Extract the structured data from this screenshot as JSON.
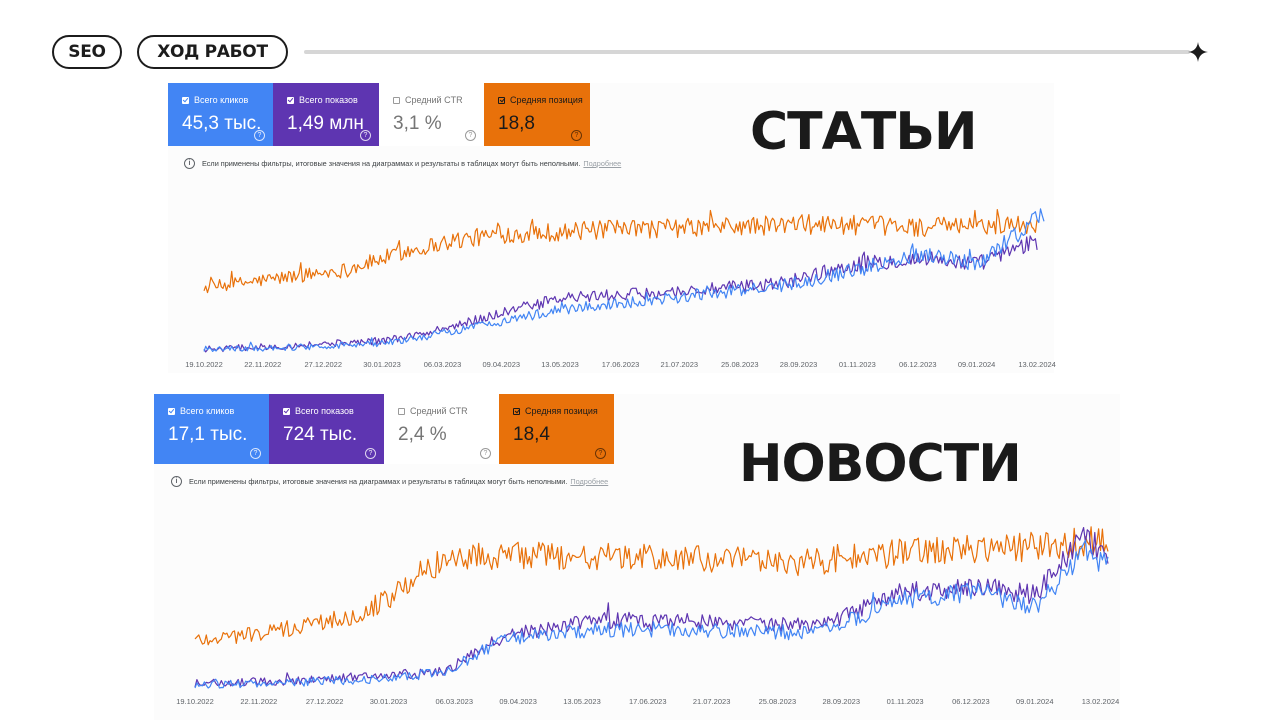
{
  "header": {
    "tag": "SEO",
    "section": "ХОД РАБОТ",
    "star_icon": "sparkle-icon"
  },
  "colors": {
    "clicks": "#4285f4",
    "impressions": "#5e35b1",
    "position": "#e8710a",
    "text": "#1a1a1a"
  },
  "panels": [
    {
      "title": "СТАТЬИ",
      "metrics": [
        {
          "label": "Всего кликов",
          "value": "45,3 тыс.",
          "checked": true
        },
        {
          "label": "Всего показов",
          "value": "1,49 млн",
          "checked": true
        },
        {
          "label": "Средний CTR",
          "value": "3,1 %",
          "checked": false
        },
        {
          "label": "Средняя позиция",
          "value": "18,8",
          "checked": true
        }
      ],
      "note": "Если применены фильтры, итоговые значения на диаграммах и результаты в таблицах могут быть неполными.",
      "more": "Подробнее"
    },
    {
      "title": "НОВОСТИ",
      "metrics": [
        {
          "label": "Всего кликов",
          "value": "17,1 тыс.",
          "checked": true
        },
        {
          "label": "Всего показов",
          "value": "724 тыс.",
          "checked": true
        },
        {
          "label": "Средний CTR",
          "value": "2,4 %",
          "checked": false
        },
        {
          "label": "Средняя позиция",
          "value": "18,4",
          "checked": true
        }
      ],
      "note": "Если применены фильтры, итоговые значения на диаграммах и результаты в таблицах могут быть неполными.",
      "more": "Подробнее"
    }
  ],
  "chart_data": [
    {
      "type": "line",
      "title": "",
      "x_range": [
        "19.10.2022",
        "17.02.2024"
      ],
      "x_ticks": [
        "19.10.2022",
        "22.11.2022",
        "27.12.2022",
        "30.01.2023",
        "06.03.2023",
        "09.04.2023",
        "13.05.2023",
        "17.06.2023",
        "21.07.2023",
        "25.08.2023",
        "28.09.2023",
        "01.11.2023",
        "06.12.2023",
        "09.01.2024",
        "13.02.2024"
      ],
      "y_axis": "none (relative scales per series)",
      "grid": false,
      "series": [
        {
          "name": "Средняя позиция",
          "color": "#e8710a",
          "x": [
            "19.10.2022",
            "01.12.2022",
            "10.01.2023",
            "10.02.2023",
            "10.03.2023",
            "10.04.2023",
            "10.06.2023",
            "10.08.2023",
            "10.10.2023",
            "10.12.2023",
            "13.02.2024"
          ],
          "level": [
            0.45,
            0.52,
            0.58,
            0.7,
            0.78,
            0.83,
            0.86,
            0.88,
            0.9,
            0.88,
            0.9
          ],
          "noise": 0.06
        },
        {
          "name": "Всего показов",
          "color": "#5e35b1",
          "x": [
            "19.10.2022",
            "01.12.2022",
            "30.01.2023",
            "01.03.2023",
            "10.04.2023",
            "15.05.2023",
            "15.07.2023",
            "15.09.2023",
            "01.11.2023",
            "10.12.2023",
            "09.01.2024",
            "13.02.2024"
          ],
          "level": [
            0.02,
            0.04,
            0.08,
            0.14,
            0.28,
            0.38,
            0.42,
            0.48,
            0.62,
            0.66,
            0.62,
            0.78
          ],
          "noise": 0.06
        },
        {
          "name": "Всего кликов",
          "color": "#4285f4",
          "x": [
            "19.10.2022",
            "01.12.2022",
            "30.01.2023",
            "01.03.2023",
            "10.04.2023",
            "15.05.2023",
            "15.07.2023",
            "15.09.2023",
            "01.11.2023",
            "10.12.2023",
            "09.01.2024",
            "17.02.2024"
          ],
          "level": [
            0.02,
            0.03,
            0.06,
            0.12,
            0.22,
            0.3,
            0.38,
            0.46,
            0.58,
            0.7,
            0.62,
            0.98
          ],
          "noise": 0.06
        }
      ]
    },
    {
      "type": "line",
      "title": "",
      "x_range": [
        "19.10.2022",
        "17.02.2024"
      ],
      "x_ticks": [
        "19.10.2022",
        "22.11.2022",
        "27.12.2022",
        "30.01.2023",
        "06.03.2023",
        "09.04.2023",
        "13.05.2023",
        "17.06.2023",
        "21.07.2023",
        "25.08.2023",
        "28.09.2023",
        "01.11.2023",
        "06.12.2023",
        "09.01.2024",
        "13.02.2024"
      ],
      "y_axis": "none (relative scales per series)",
      "grid": false,
      "series": [
        {
          "name": "Средняя позиция",
          "color": "#e8710a",
          "x": [
            "19.10.2022",
            "01.12.2022",
            "10.01.2023",
            "30.01.2023",
            "20.02.2023",
            "10.03.2023",
            "10.05.2023",
            "10.07.2023",
            "10.09.2023",
            "10.11.2023",
            "10.01.2024",
            "17.02.2024"
          ],
          "level": [
            0.3,
            0.35,
            0.45,
            0.55,
            0.75,
            0.82,
            0.82,
            0.8,
            0.78,
            0.85,
            0.88,
            0.92
          ],
          "noise": 0.08
        },
        {
          "name": "Всего показов",
          "color": "#5e35b1",
          "x": [
            "19.10.2022",
            "01.12.2022",
            "30.01.2023",
            "01.03.2023",
            "01.04.2023",
            "15.05.2023",
            "15.07.2023",
            "15.09.2023",
            "01.11.2023",
            "10.12.2023",
            "09.01.2024",
            "05.02.2024",
            "17.02.2024"
          ],
          "level": [
            0.03,
            0.04,
            0.08,
            0.1,
            0.32,
            0.42,
            0.42,
            0.38,
            0.6,
            0.62,
            0.58,
            0.95,
            0.8
          ],
          "noise": 0.07
        },
        {
          "name": "Всего кликов",
          "color": "#4285f4",
          "x": [
            "19.10.2022",
            "01.12.2022",
            "30.01.2023",
            "01.03.2023",
            "01.04.2023",
            "15.05.2023",
            "15.07.2023",
            "15.09.2023",
            "01.11.2023",
            "10.12.2023",
            "09.01.2024",
            "05.02.2024",
            "17.02.2024"
          ],
          "level": [
            0.02,
            0.03,
            0.06,
            0.1,
            0.3,
            0.36,
            0.36,
            0.34,
            0.55,
            0.6,
            0.5,
            0.85,
            0.75
          ],
          "noise": 0.07
        }
      ]
    }
  ]
}
